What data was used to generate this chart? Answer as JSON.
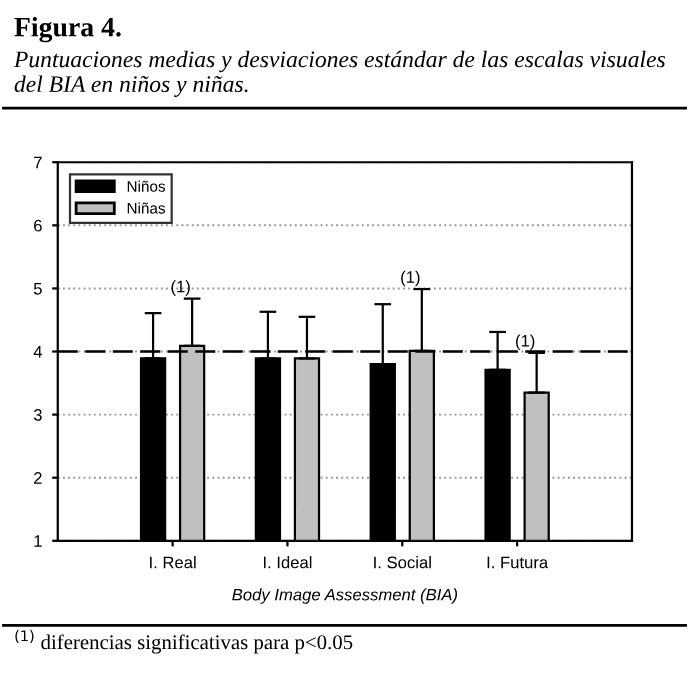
{
  "chart_data": {
    "type": "bar",
    "title": "Figura 4.",
    "subtitle": "Puntuaciones medias y desviaciones estándar de las escalas visuales del BIA en niños y niñas.",
    "xlabel": "Body Image Assessment (BIA)",
    "categories": [
      "I. Real",
      "I. Ideal",
      "I. Social",
      "I. Futura"
    ],
    "series": [
      {
        "name": "Niños",
        "color": "#000000",
        "values": [
          3.89,
          3.89,
          3.8,
          3.71
        ],
        "errors": [
          [
            3.89,
            4.61
          ],
          [
            3.89,
            4.63
          ],
          [
            3.8,
            4.75
          ],
          [
            3.71,
            4.31
          ]
        ]
      },
      {
        "name": "Niñas",
        "color": "#c0c0c0",
        "values": [
          4.09,
          3.89,
          4.01,
          3.35
        ],
        "errors": [
          [
            4.09,
            4.84
          ],
          [
            3.89,
            4.55
          ],
          [
            4.01,
            4.99
          ],
          [
            3.35,
            3.98
          ]
        ]
      }
    ],
    "ylim": [
      1,
      7
    ],
    "yticks": [
      1,
      2,
      3,
      4,
      5,
      6,
      7
    ],
    "grid": "y",
    "legend": "top left",
    "ref_lines": [
      {
        "axis": "y",
        "value": 4,
        "line_style": "dashed",
        "color": "#000000"
      }
    ],
    "annotations": [
      "(1)",
      "(1)",
      "(1)",
      "$^{(1)}$ diferencias significativas para p<0.05"
    ]
  }
}
